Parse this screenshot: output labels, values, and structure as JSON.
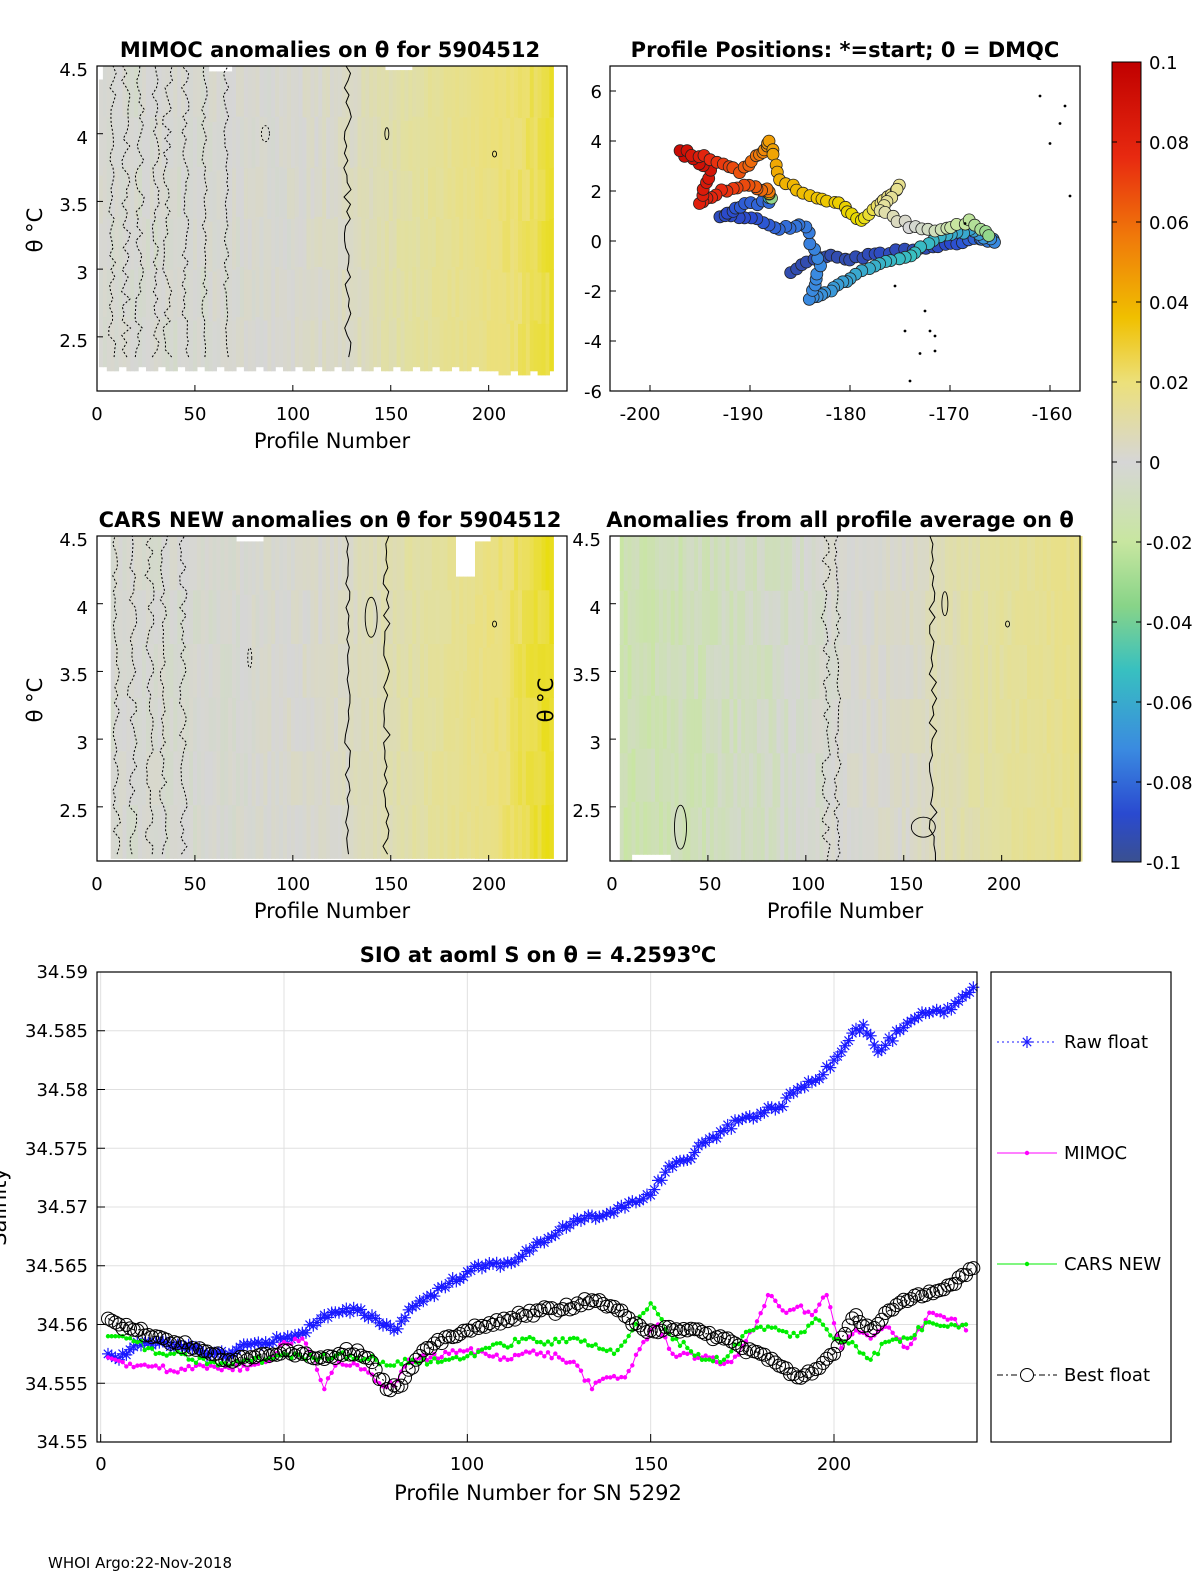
{
  "footer": "WHOI Argo:22-Nov-2018",
  "colors": {
    "raw": "#1a1aff",
    "mimoc": "#ff00ff",
    "cars": "#00ee00",
    "best": "#000000",
    "grid": "#e0e0e0",
    "neutral": "#d6d6d6",
    "yellow": "#e8dc00"
  },
  "colorbar": {
    "ticks": [
      "0.1",
      "0.08",
      "0.06",
      "0.04",
      "0.02",
      "0",
      "-0.02",
      "-0.04",
      "-0.06",
      "-0.08",
      "-0.1"
    ],
    "range": [
      -0.1,
      0.1
    ]
  },
  "chart_data": [
    {
      "id": "mimoc",
      "type": "heatmap",
      "title": "MIMOC anomalies on θ  for 5904512",
      "xlabel": "Profile Number",
      "ylabel": "θ °C",
      "xlim": [
        0,
        240
      ],
      "ylim": [
        2.1,
        4.5
      ],
      "xticks": [
        "0",
        "50",
        "100",
        "150",
        "200"
      ],
      "yticks": [
        "2.5",
        "3",
        "3.5",
        "4",
        "4.5"
      ],
      "anomaly_by_profile": [
        [
          0,
          0.0
        ],
        [
          40,
          0.0
        ],
        [
          100,
          0.001
        ],
        [
          130,
          0.004
        ],
        [
          150,
          0.008
        ],
        [
          170,
          0.012
        ],
        [
          200,
          0.018
        ],
        [
          220,
          0.022
        ],
        [
          240,
          0.028
        ]
      ]
    },
    {
      "id": "positions",
      "type": "scatter",
      "title": "Profile Positions: *=start; 0 = DMQC",
      "xlim": [
        -204,
        -157
      ],
      "ylim": [
        -6,
        7
      ],
      "xticks": [
        "-200",
        "-190",
        "-180",
        "-170",
        "-160"
      ],
      "yticks": [
        "-6",
        "-4",
        "-2",
        "0",
        "2",
        "4",
        "6"
      ]
    },
    {
      "id": "cars",
      "type": "heatmap",
      "title": "CARS NEW anomalies on θ for 5904512",
      "xlabel": "Profile Number",
      "ylabel": "θ °C",
      "xlim": [
        0,
        240
      ],
      "ylim": [
        2.1,
        4.5
      ],
      "xticks": [
        "0",
        "50",
        "100",
        "150",
        "200"
      ],
      "yticks": [
        "2.5",
        "3",
        "3.5",
        "4",
        "4.5"
      ],
      "anomaly_by_profile": [
        [
          0,
          0.0
        ],
        [
          60,
          0.0
        ],
        [
          120,
          0.002
        ],
        [
          150,
          0.007
        ],
        [
          180,
          0.013
        ],
        [
          200,
          0.018
        ],
        [
          220,
          0.024
        ],
        [
          240,
          0.03
        ]
      ]
    },
    {
      "id": "allavg",
      "type": "heatmap",
      "title": "Anomalies from all profile average on θ",
      "xlabel": "Profile Number",
      "ylabel": "θ °C",
      "xlim": [
        0,
        240
      ],
      "ylim": [
        2.1,
        4.5
      ],
      "xticks": [
        "0",
        "50",
        "100",
        "150",
        "200"
      ],
      "yticks": [
        "2.5",
        "3",
        "3.5",
        "4",
        "4.5"
      ],
      "anomaly_by_profile": [
        [
          0,
          -0.006
        ],
        [
          50,
          -0.004
        ],
        [
          90,
          -0.002
        ],
        [
          110,
          0.0
        ],
        [
          150,
          0.002
        ],
        [
          170,
          0.006
        ],
        [
          200,
          0.011
        ],
        [
          240,
          0.016
        ]
      ]
    },
    {
      "id": "salinity",
      "type": "line",
      "title": "SIO at aoml S on θ = 4.2593",
      "title_sup": "o",
      "title_tail": "C",
      "xlabel": "Profile Number for SN 5292",
      "ylabel": "Salinity",
      "xlim": [
        -1,
        239
      ],
      "ylim": [
        34.55,
        34.59
      ],
      "xticks": [
        "0",
        "50",
        "100",
        "150",
        "200"
      ],
      "yticks": [
        "34.55",
        "34.555",
        "34.56",
        "34.565",
        "34.57",
        "34.575",
        "34.58",
        "34.585",
        "34.59"
      ],
      "legend": [
        "Raw float",
        "MIMOC",
        "CARS NEW",
        "Best float"
      ],
      "series": [
        {
          "name": "Raw float",
          "points": [
            [
              2,
              34.5575
            ],
            [
              5,
              34.557
            ],
            [
              10,
              34.5585
            ],
            [
              15,
              34.5585
            ],
            [
              20,
              34.558
            ],
            [
              25,
              34.558
            ],
            [
              30,
              34.5575
            ],
            [
              35,
              34.5575
            ],
            [
              40,
              34.5583
            ],
            [
              45,
              34.5585
            ],
            [
              50,
              34.5588
            ],
            [
              55,
              34.5593
            ],
            [
              60,
              34.5605
            ],
            [
              65,
              34.561
            ],
            [
              70,
              34.5612
            ],
            [
              75,
              34.5605
            ],
            [
              80,
              34.5595
            ],
            [
              85,
              34.5615
            ],
            [
              90,
              34.5625
            ],
            [
              95,
              34.5635
            ],
            [
              100,
              34.5645
            ],
            [
              105,
              34.565
            ],
            [
              110,
              34.5652
            ],
            [
              115,
              34.5658
            ],
            [
              120,
              34.567
            ],
            [
              125,
              34.568
            ],
            [
              130,
              34.569
            ],
            [
              135,
              34.569
            ],
            [
              140,
              34.5695
            ],
            [
              145,
              34.5705
            ],
            [
              150,
              34.571
            ],
            [
              155,
              34.5735
            ],
            [
              160,
              34.574
            ],
            [
              165,
              34.5755
            ],
            [
              170,
              34.5765
            ],
            [
              175,
              34.5775
            ],
            [
              180,
              34.578
            ],
            [
              185,
              34.5785
            ],
            [
              190,
              34.58
            ],
            [
              195,
              34.5808
            ],
            [
              200,
              34.5825
            ],
            [
              205,
              34.5848
            ],
            [
              208,
              34.5855
            ],
            [
              212,
              34.5832
            ],
            [
              218,
              34.585
            ],
            [
              225,
              34.5865
            ],
            [
              230,
              34.5865
            ],
            [
              234,
              34.5875
            ],
            [
              238,
              34.5887
            ]
          ]
        },
        {
          "name": "MIMOC",
          "points": [
            [
              2,
              34.5572
            ],
            [
              6,
              34.5568
            ],
            [
              10,
              34.5565
            ],
            [
              15,
              34.5565
            ],
            [
              20,
              34.556
            ],
            [
              25,
              34.5562
            ],
            [
              30,
              34.5565
            ],
            [
              35,
              34.5563
            ],
            [
              40,
              34.5562
            ],
            [
              45,
              34.5568
            ],
            [
              50,
              34.5585
            ],
            [
              55,
              34.5588
            ],
            [
              58,
              34.5572
            ],
            [
              61,
              34.5545
            ],
            [
              64,
              34.5565
            ],
            [
              68,
              34.5565
            ],
            [
              72,
              34.5562
            ],
            [
              76,
              34.555
            ],
            [
              80,
              34.5548
            ],
            [
              84,
              34.557
            ],
            [
              90,
              34.5572
            ],
            [
              95,
              34.5575
            ],
            [
              100,
              34.5578
            ],
            [
              105,
              34.5575
            ],
            [
              110,
              34.5572
            ],
            [
              115,
              34.5575
            ],
            [
              120,
              34.5576
            ],
            [
              125,
              34.5572
            ],
            [
              130,
              34.5565
            ],
            [
              134,
              34.5545
            ],
            [
              138,
              34.5555
            ],
            [
              143,
              34.5555
            ],
            [
              148,
              34.5585
            ],
            [
              152,
              34.56
            ],
            [
              156,
              34.5575
            ],
            [
              160,
              34.5575
            ],
            [
              164,
              34.5572
            ],
            [
              168,
              34.5568
            ],
            [
              172,
              34.5568
            ],
            [
              178,
              34.5595
            ],
            [
              182,
              34.5625
            ],
            [
              186,
              34.5612
            ],
            [
              190,
              34.5615
            ],
            [
              194,
              34.5608
            ],
            [
              198,
              34.5625
            ],
            [
              202,
              34.558
            ],
            [
              206,
              34.5595
            ],
            [
              210,
              34.5588
            ],
            [
              214,
              34.5598
            ],
            [
              220,
              34.558
            ],
            [
              226,
              34.561
            ],
            [
              232,
              34.5605
            ],
            [
              236,
              34.5595
            ]
          ]
        },
        {
          "name": "CARS NEW",
          "points": [
            [
              2,
              34.559
            ],
            [
              6,
              34.559
            ],
            [
              10,
              34.5585
            ],
            [
              15,
              34.5575
            ],
            [
              20,
              34.5575
            ],
            [
              25,
              34.557
            ],
            [
              30,
              34.5568
            ],
            [
              35,
              34.5565
            ],
            [
              40,
              34.557
            ],
            [
              45,
              34.557
            ],
            [
              50,
              34.5575
            ],
            [
              55,
              34.5572
            ],
            [
              60,
              34.5572
            ],
            [
              65,
              34.5575
            ],
            [
              70,
              34.5572
            ],
            [
              75,
              34.557
            ],
            [
              80,
              34.5565
            ],
            [
              85,
              34.557
            ],
            [
              90,
              34.5568
            ],
            [
              95,
              34.557
            ],
            [
              100,
              34.5573
            ],
            [
              105,
              34.558
            ],
            [
              110,
              34.5582
            ],
            [
              115,
              34.5588
            ],
            [
              120,
              34.5585
            ],
            [
              125,
              34.5585
            ],
            [
              130,
              34.5588
            ],
            [
              135,
              34.5583
            ],
            [
              140,
              34.5575
            ],
            [
              145,
              34.5595
            ],
            [
              150,
              34.5618
            ],
            [
              155,
              34.5592
            ],
            [
              160,
              34.558
            ],
            [
              165,
              34.557
            ],
            [
              170,
              34.557
            ],
            [
              175,
              34.559
            ],
            [
              180,
              34.5598
            ],
            [
              185,
              34.5595
            ],
            [
              190,
              34.559
            ],
            [
              195,
              34.5605
            ],
            [
              200,
              34.5588
            ],
            [
              205,
              34.5585
            ],
            [
              210,
              34.557
            ],
            [
              214,
              34.5585
            ],
            [
              220,
              34.5588
            ],
            [
              226,
              34.5602
            ],
            [
              232,
              34.56
            ],
            [
              236,
              34.56
            ]
          ]
        },
        {
          "name": "Best float",
          "points": [
            [
              2,
              34.5605
            ],
            [
              5,
              34.56
            ],
            [
              10,
              34.5595
            ],
            [
              15,
              34.559
            ],
            [
              20,
              34.5585
            ],
            [
              25,
              34.558
            ],
            [
              30,
              34.5575
            ],
            [
              35,
              34.557
            ],
            [
              40,
              34.557
            ],
            [
              45,
              34.5575
            ],
            [
              50,
              34.5578
            ],
            [
              55,
              34.5575
            ],
            [
              60,
              34.5572
            ],
            [
              65,
              34.5575
            ],
            [
              70,
              34.5578
            ],
            [
              74,
              34.5568
            ],
            [
              78,
              34.5545
            ],
            [
              82,
              34.5548
            ],
            [
              86,
              34.557
            ],
            [
              90,
              34.558
            ],
            [
              95,
              34.559
            ],
            [
              100,
              34.5595
            ],
            [
              105,
              34.5598
            ],
            [
              110,
              34.5605
            ],
            [
              115,
              34.5608
            ],
            [
              120,
              34.5612
            ],
            [
              125,
              34.5612
            ],
            [
              130,
              34.5618
            ],
            [
              135,
              34.562
            ],
            [
              140,
              34.5615
            ],
            [
              145,
              34.56
            ],
            [
              150,
              34.5595
            ],
            [
              155,
              34.5598
            ],
            [
              160,
              34.5595
            ],
            [
              165,
              34.5592
            ],
            [
              170,
              34.5588
            ],
            [
              175,
              34.558
            ],
            [
              180,
              34.5575
            ],
            [
              185,
              34.5565
            ],
            [
              190,
              34.5555
            ],
            [
              195,
              34.5562
            ],
            [
              200,
              34.5575
            ],
            [
              203,
              34.5592
            ],
            [
              206,
              34.5608
            ],
            [
              210,
              34.5595
            ],
            [
              215,
              34.5612
            ],
            [
              220,
              34.562
            ],
            [
              225,
              34.5625
            ],
            [
              230,
              34.563
            ],
            [
              234,
              34.564
            ],
            [
              238,
              34.5648
            ]
          ]
        }
      ]
    }
  ]
}
